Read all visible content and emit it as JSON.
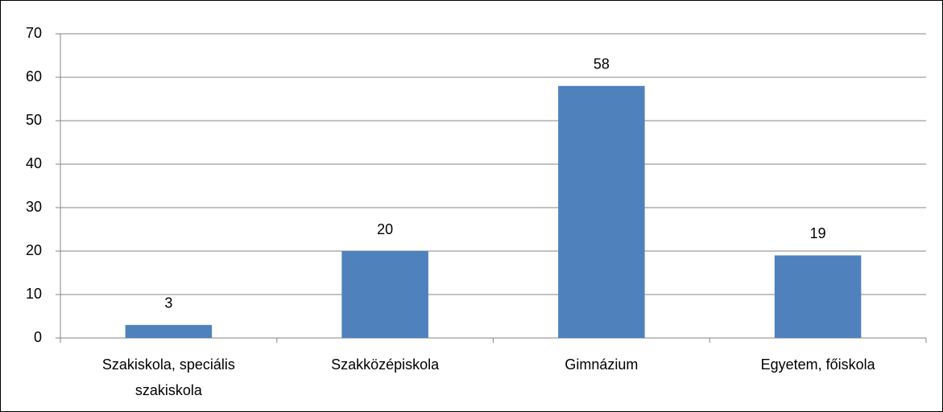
{
  "chart_data": {
    "type": "bar",
    "categories": [
      "Szakiskola, speciális szakiskola",
      "Szakközépiskola",
      "Gimnázium",
      "Egyetem, főiskola"
    ],
    "values": [
      3,
      20,
      58,
      19
    ],
    "color": "#4f81bd",
    "ylim": [
      0,
      70
    ],
    "yticks": [
      0,
      10,
      20,
      30,
      40,
      50,
      60,
      70
    ],
    "grid": true,
    "data_labels": true
  }
}
